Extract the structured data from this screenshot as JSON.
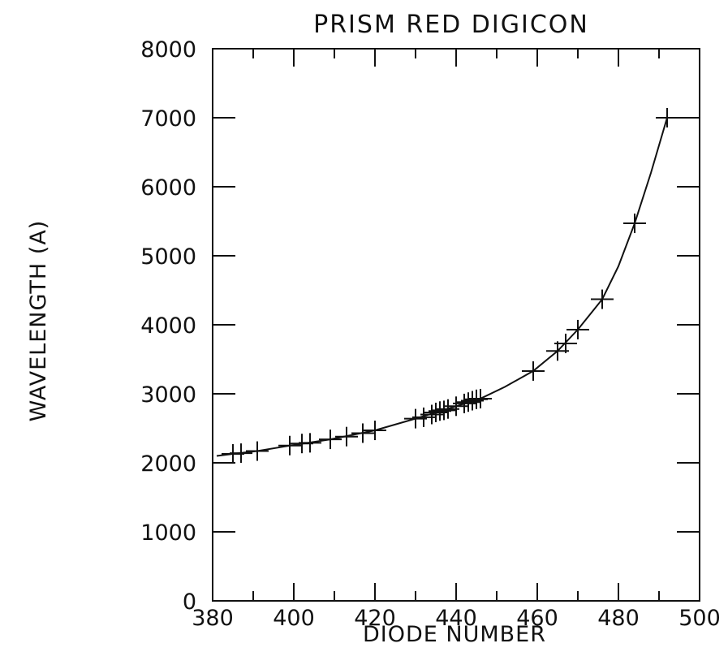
{
  "chart_data": {
    "type": "scatter",
    "title": "PRISM   RED DIGICON",
    "xlabel": "DIODE NUMBER",
    "ylabel": "WAVELENGTH  (A)",
    "xlim": [
      380,
      500
    ],
    "ylim": [
      0,
      8000
    ],
    "x_ticks": [
      380,
      400,
      420,
      440,
      460,
      480,
      500
    ],
    "y_ticks": [
      0,
      1000,
      2000,
      3000,
      4000,
      5000,
      6000,
      7000,
      8000
    ],
    "x_minor_step": 10,
    "grid": false,
    "markers": "plus",
    "points": [
      {
        "x": 385,
        "y": 2130
      },
      {
        "x": 387,
        "y": 2140
      },
      {
        "x": 391,
        "y": 2170
      },
      {
        "x": 399,
        "y": 2250
      },
      {
        "x": 402,
        "y": 2280
      },
      {
        "x": 404,
        "y": 2290
      },
      {
        "x": 409,
        "y": 2340
      },
      {
        "x": 413,
        "y": 2380
      },
      {
        "x": 417,
        "y": 2430
      },
      {
        "x": 420,
        "y": 2470
      },
      {
        "x": 430,
        "y": 2640
      },
      {
        "x": 432,
        "y": 2660
      },
      {
        "x": 434,
        "y": 2700
      },
      {
        "x": 435,
        "y": 2730
      },
      {
        "x": 436,
        "y": 2750
      },
      {
        "x": 437,
        "y": 2760
      },
      {
        "x": 438,
        "y": 2780
      },
      {
        "x": 440,
        "y": 2820
      },
      {
        "x": 442,
        "y": 2860
      },
      {
        "x": 443,
        "y": 2880
      },
      {
        "x": 444,
        "y": 2900
      },
      {
        "x": 445,
        "y": 2920
      },
      {
        "x": 446,
        "y": 2930
      },
      {
        "x": 459,
        "y": 3330
      },
      {
        "x": 465,
        "y": 3620
      },
      {
        "x": 467,
        "y": 3730
      },
      {
        "x": 470,
        "y": 3930
      },
      {
        "x": 476,
        "y": 4370
      },
      {
        "x": 484,
        "y": 5470
      },
      {
        "x": 492,
        "y": 7000
      }
    ],
    "fit_curve": [
      {
        "x": 381,
        "y": 2100
      },
      {
        "x": 385,
        "y": 2130
      },
      {
        "x": 391,
        "y": 2170
      },
      {
        "x": 399,
        "y": 2250
      },
      {
        "x": 409,
        "y": 2340
      },
      {
        "x": 420,
        "y": 2470
      },
      {
        "x": 430,
        "y": 2640
      },
      {
        "x": 440,
        "y": 2820
      },
      {
        "x": 446,
        "y": 2930
      },
      {
        "x": 452,
        "y": 3100
      },
      {
        "x": 459,
        "y": 3330
      },
      {
        "x": 465,
        "y": 3620
      },
      {
        "x": 470,
        "y": 3930
      },
      {
        "x": 476,
        "y": 4370
      },
      {
        "x": 480,
        "y": 4850
      },
      {
        "x": 484,
        "y": 5470
      },
      {
        "x": 488,
        "y": 6200
      },
      {
        "x": 492,
        "y": 7000
      },
      {
        "x": 500,
        "y": 7000
      }
    ]
  }
}
